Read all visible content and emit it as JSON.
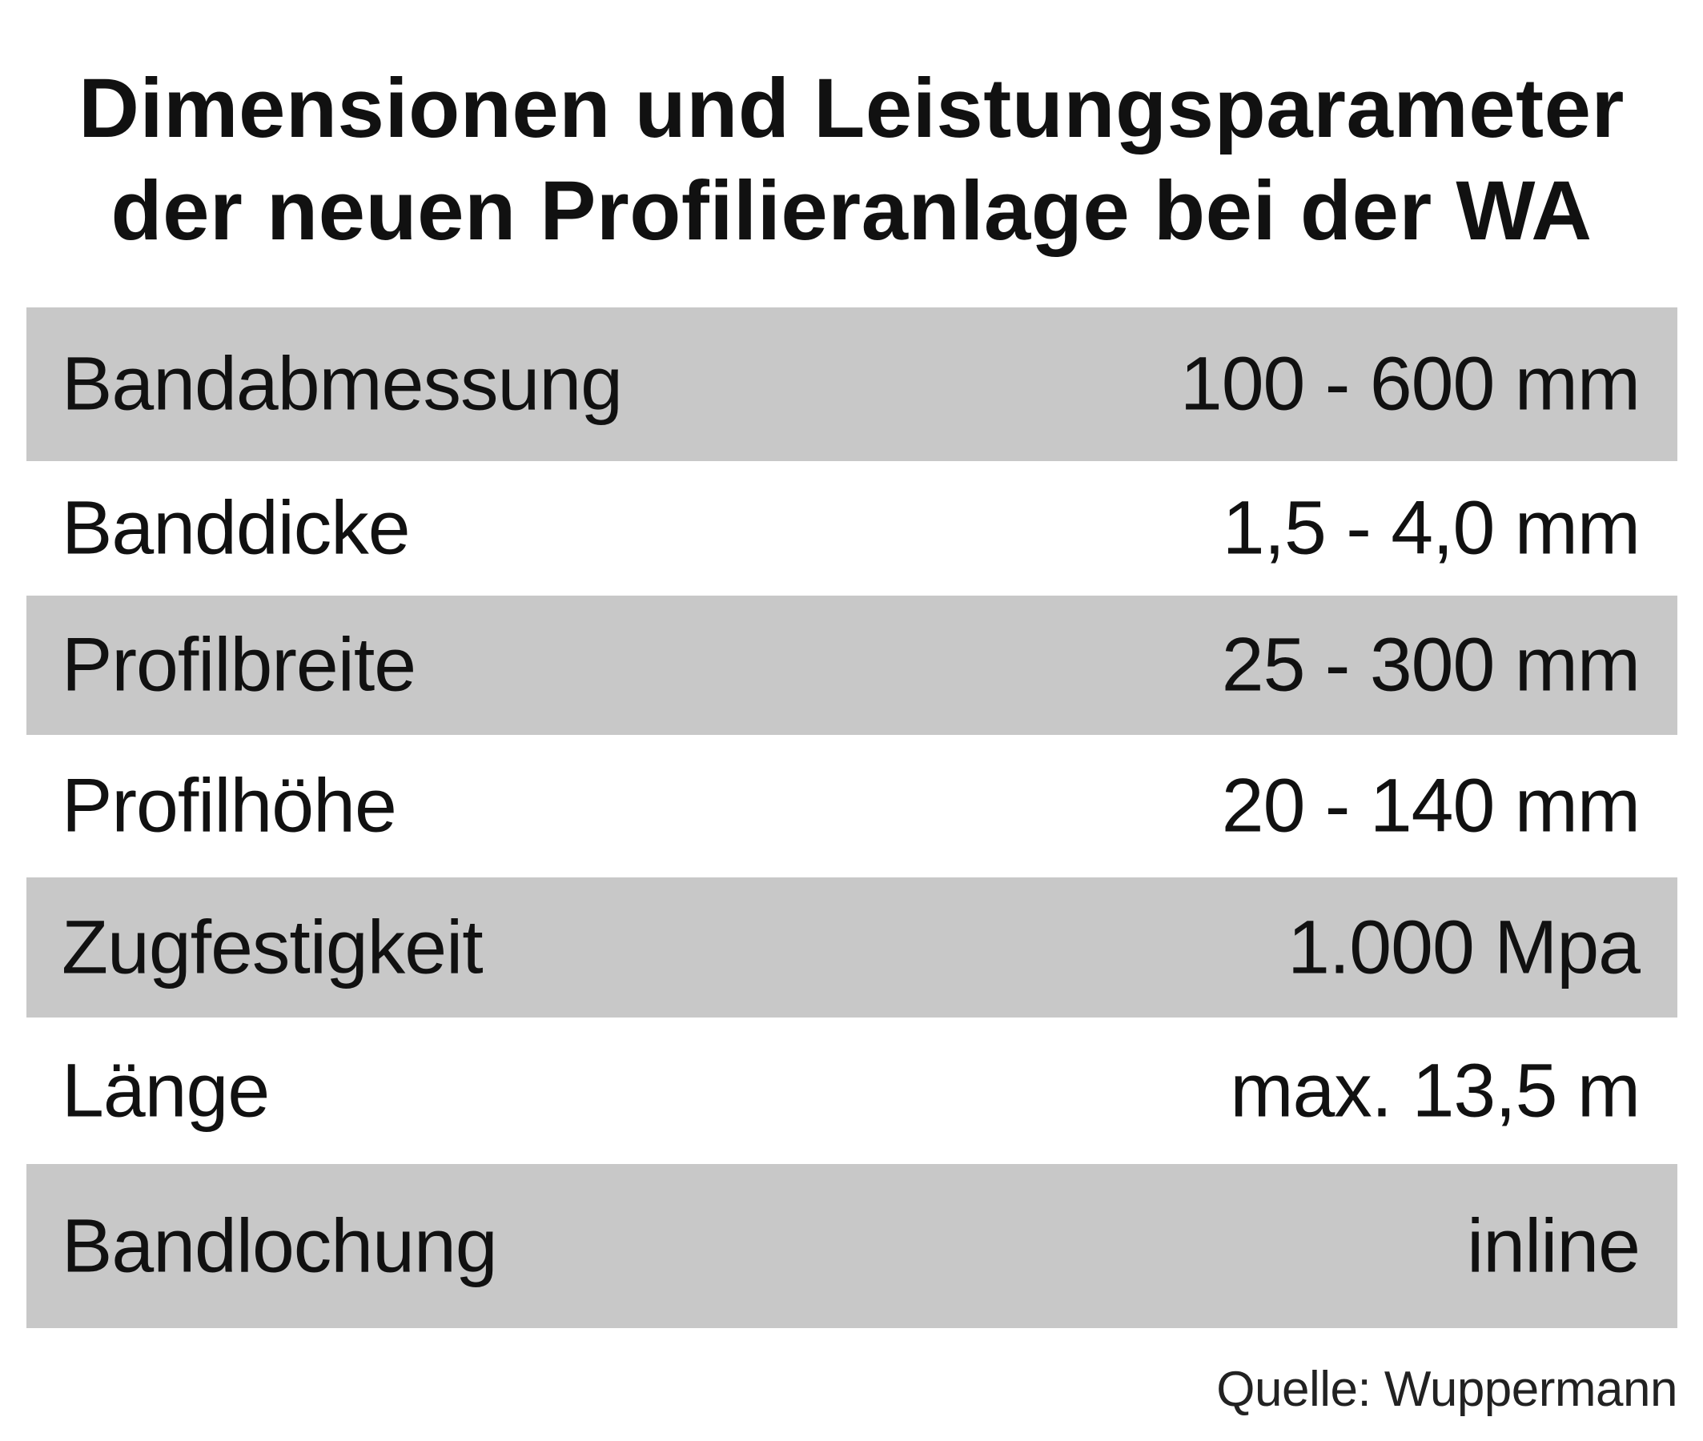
{
  "title": {
    "line1": "Dimensionen und Leistungsparameter",
    "line2": "der neuen Profilieranlage bei der WA"
  },
  "rows": [
    {
      "label": "Bandabmessung",
      "value": "100 - 600 mm"
    },
    {
      "label": "Banddicke",
      "value": "1,5 - 4,0 mm"
    },
    {
      "label": "Profilbreite",
      "value": "25 - 300 mm"
    },
    {
      "label": "Profilhöhe",
      "value": "20 - 140 mm"
    },
    {
      "label": "Zugfestigkeit",
      "value": "1.000 Mpa"
    },
    {
      "label": "Länge",
      "value": "max. 13,5 m"
    },
    {
      "label": "Bandlochung",
      "value": "inline"
    }
  ],
  "source": "Quelle: Wuppermann",
  "colors": {
    "row_shade": "#c8c8c8",
    "text": "#111111",
    "background": "#ffffff"
  }
}
